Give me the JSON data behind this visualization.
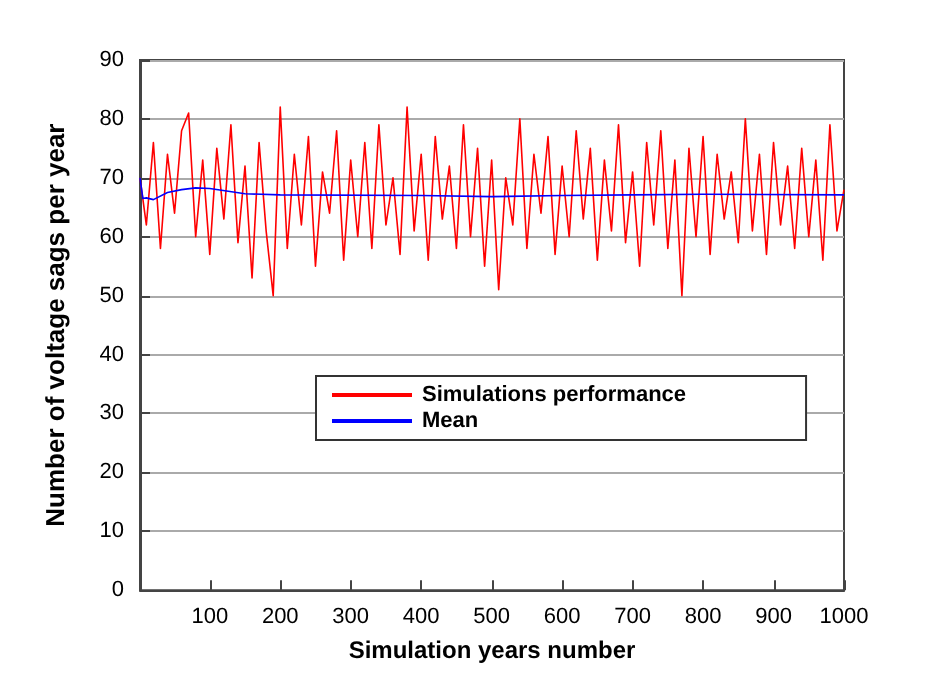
{
  "chart_data": {
    "type": "line",
    "xlabel": "Simulation years number",
    "ylabel": "Number of voltage sags per year",
    "xlim": [
      1,
      1000
    ],
    "xticks": [
      100,
      200,
      300,
      400,
      500,
      600,
      700,
      800,
      900,
      1000
    ],
    "ylim": [
      0,
      90
    ],
    "yticks": [
      0,
      10,
      20,
      30,
      40,
      50,
      60,
      70,
      80,
      90
    ],
    "grid": "y",
    "legend": "center",
    "marker": "none",
    "series": [
      {
        "name": "Simulations performance",
        "color": "#ff0000",
        "x": [
          1,
          10,
          20,
          30,
          40,
          50,
          60,
          70,
          80,
          90,
          100,
          110,
          120,
          130,
          140,
          150,
          160,
          170,
          180,
          190,
          200,
          210,
          220,
          230,
          240,
          250,
          260,
          270,
          280,
          290,
          300,
          310,
          320,
          330,
          340,
          350,
          360,
          370,
          380,
          390,
          400,
          410,
          420,
          430,
          440,
          450,
          460,
          470,
          480,
          490,
          500,
          510,
          520,
          530,
          540,
          550,
          560,
          570,
          580,
          590,
          600,
          610,
          620,
          630,
          640,
          650,
          660,
          670,
          680,
          690,
          700,
          710,
          720,
          730,
          740,
          750,
          760,
          770,
          780,
          790,
          800,
          810,
          820,
          830,
          840,
          850,
          860,
          870,
          880,
          890,
          900,
          910,
          920,
          930,
          940,
          950,
          960,
          970,
          980,
          990,
          1000
        ],
        "values": [
          70,
          62,
          76,
          58,
          74,
          64,
          78,
          81,
          60,
          73,
          57,
          75,
          63,
          79,
          59,
          72,
          53,
          76,
          61,
          50,
          82,
          58,
          74,
          62,
          77,
          55,
          71,
          64,
          78,
          56,
          73,
          60,
          76,
          58,
          79,
          62,
          70,
          57,
          82,
          61,
          74,
          56,
          77,
          63,
          72,
          58,
          79,
          60,
          75,
          55,
          73,
          51,
          70,
          62,
          80,
          58,
          74,
          64,
          77,
          57,
          72,
          60,
          78,
          63,
          75,
          56,
          73,
          61,
          79,
          59,
          71,
          55,
          76,
          62,
          78,
          58,
          73,
          50,
          75,
          60,
          77,
          57,
          74,
          63,
          71,
          59,
          80,
          61,
          74,
          57,
          76,
          62,
          72,
          58,
          75,
          60,
          73,
          56,
          79,
          61,
          68
        ]
      },
      {
        "name": "Mean",
        "color": "#0000ff",
        "x": [
          1,
          5,
          10,
          20,
          40,
          60,
          80,
          100,
          150,
          200,
          400,
          500,
          600,
          700,
          800,
          1000
        ],
        "values": [
          70,
          66.5,
          66.6,
          66.3,
          67.5,
          68,
          68.3,
          68.2,
          67.3,
          67.1,
          67,
          66.8,
          67,
          67.1,
          67.2,
          67.1
        ]
      }
    ]
  }
}
